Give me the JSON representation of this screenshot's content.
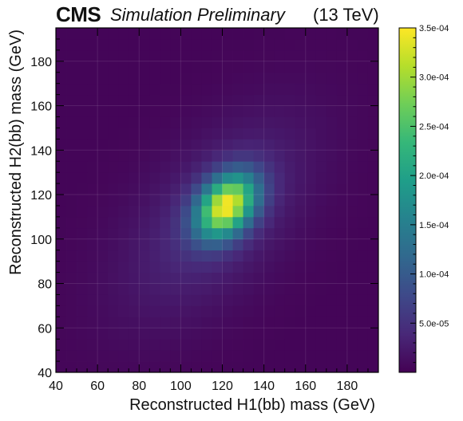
{
  "header": {
    "experiment": "CMS",
    "label": "Simulation Preliminary",
    "energy": "(13 TeV)"
  },
  "chart_data": {
    "type": "heatmap",
    "title": "",
    "xlabel": "Reconstructed H1(bb) mass (GeV)",
    "ylabel": "Reconstructed H2(bb) mass (GeV)",
    "xlim": [
      40,
      195
    ],
    "ylim": [
      40,
      195
    ],
    "x_ticks": [
      40,
      60,
      80,
      100,
      120,
      140,
      160,
      180
    ],
    "y_ticks": [
      40,
      60,
      80,
      100,
      120,
      140,
      160,
      180
    ],
    "bin_width": 5,
    "colormap": "viridis",
    "z_range": [
      0,
      0.00035
    ],
    "z_ticks": [
      {
        "value": 5e-05,
        "label": "5.0e-05"
      },
      {
        "value": 0.0001,
        "label": "1.0e-04"
      },
      {
        "value": 0.00015,
        "label": "1.5e-04"
      },
      {
        "value": 0.0002,
        "label": "2.0e-04"
      },
      {
        "value": 0.00025,
        "label": "2.5e-04"
      },
      {
        "value": 0.0003,
        "label": "3.0e-04"
      },
      {
        "value": 0.00035,
        "label": "3.5e-04"
      }
    ],
    "density_model": {
      "peak_value": 0.00035,
      "peak_x": 122,
      "peak_y": 115,
      "core_sigma_x": 10,
      "core_sigma_y": 10,
      "core_correlation": 0.35,
      "halo_fraction": 0.12,
      "halo_sigma_x": 30,
      "halo_sigma_y": 30,
      "halo_correlation": 0.55,
      "floor_value": 4e-06
    },
    "colors": {
      "viridis": [
        "#440154",
        "#482878",
        "#3e4989",
        "#31688e",
        "#26828e",
        "#1f9e89",
        "#35b779",
        "#6ece58",
        "#b5de2b",
        "#fde725"
      ]
    }
  }
}
